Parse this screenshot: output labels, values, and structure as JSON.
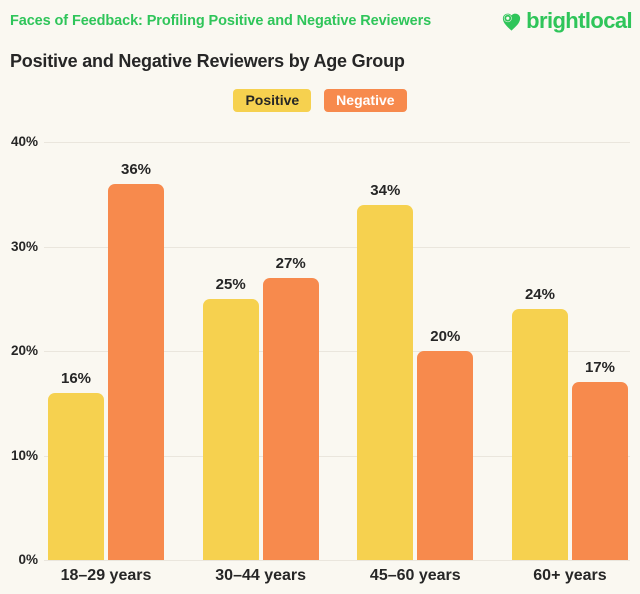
{
  "page": {
    "background": "#FAF8F1",
    "text_dark": "#262626"
  },
  "header": {
    "kicker": "Faces of Feedback: Profiling Positive and Negative Reviewers",
    "brand": {
      "logo_text": "brightlocal",
      "green": "#2FC55A"
    }
  },
  "chart_data": {
    "type": "bar",
    "title": "Positive and Negative Reviewers by Age Group",
    "categories": [
      "18–29 years",
      "30–44 years",
      "45–60 years",
      "60+ years"
    ],
    "series": [
      {
        "name": "Positive",
        "color": "#F6D14F",
        "text_color": "#262626",
        "values": [
          16,
          25,
          34,
          24
        ]
      },
      {
        "name": "Negative",
        "color": "#F78A4D",
        "text_color": "#FFFFFF",
        "values": [
          36,
          27,
          20,
          17
        ]
      }
    ],
    "y_ticks": [
      40,
      30,
      20,
      10,
      0
    ],
    "ylim": [
      0,
      40
    ],
    "value_suffix": "%",
    "grid": true,
    "gridline_color": "#EAE6DD",
    "legend_position": "top-center"
  }
}
